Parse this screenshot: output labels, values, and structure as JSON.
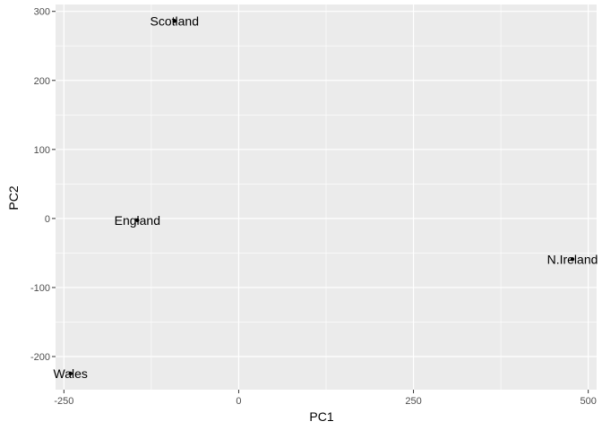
{
  "chart_data": {
    "type": "scatter",
    "xlabel": "PC1",
    "ylabel": "PC2",
    "xlim": [
      -262,
      512
    ],
    "ylim": [
      -248,
      310
    ],
    "x_ticks": [
      -250,
      0,
      250,
      500
    ],
    "x_tick_labels": [
      "-250",
      "0",
      "250",
      "500"
    ],
    "y_ticks": [
      -200,
      -100,
      0,
      100,
      200,
      300
    ],
    "y_tick_labels": [
      "-200",
      "-100",
      "0",
      "100",
      "200",
      "300"
    ],
    "points": [
      {
        "label": "England",
        "x": -144.99,
        "y": -2.53
      },
      {
        "label": "Wales",
        "x": -240.53,
        "y": -224.65
      },
      {
        "label": "Scotland",
        "x": -91.87,
        "y": 286.08
      },
      {
        "label": "N.Ireland",
        "x": 477.39,
        "y": -58.9
      }
    ],
    "grid": true,
    "panel_color": "#ebebeb",
    "grid_color": "#ffffff",
    "point_color": "#000000"
  }
}
